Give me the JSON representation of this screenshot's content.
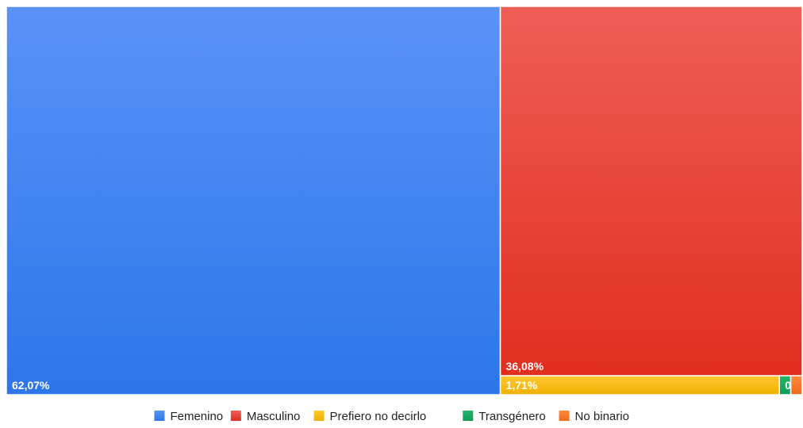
{
  "chart_data": {
    "type": "treemap",
    "series": [
      {
        "name": "Femenino",
        "value": 62.07,
        "label": "62,07%",
        "color": "#3b82f6"
      },
      {
        "name": "Masculino",
        "value": 36.08,
        "label": "36,08%",
        "color": "#ea3c2e"
      },
      {
        "name": "Prefiero no decirlo",
        "value": 1.71,
        "label": "1,71%",
        "color": "#f4b400"
      },
      {
        "name": "Transgénero",
        "value": 0.07,
        "label": "0...",
        "color": "#0f9d58"
      },
      {
        "name": "No binario",
        "value": 0.07,
        "label": "",
        "color": "#f06a1d"
      }
    ],
    "legend_position": "bottom"
  }
}
